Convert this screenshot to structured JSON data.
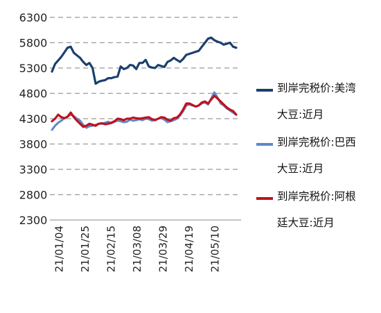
{
  "chart_data": {
    "type": "line",
    "title": "",
    "xlabel": "",
    "ylabel": "",
    "ylim": [
      2300,
      6300
    ],
    "yticks": [
      2300,
      2800,
      3300,
      3800,
      4300,
      4800,
      5300,
      5800,
      6300
    ],
    "x_tick_labels": [
      "21/01/04",
      "21/01/25",
      "21/02/15",
      "21/03/08",
      "21/03/29",
      "21/04/19",
      "21/05/10"
    ],
    "grid": "horizontal-dashed",
    "legend_position": "right",
    "series": [
      {
        "name": "到岸完税价:美湾大豆:近月",
        "color": "#1a3f6f",
        "values": [
          5230,
          5380,
          5450,
          5520,
          5610,
          5700,
          5720,
          5600,
          5550,
          5500,
          5420,
          5360,
          5400,
          5300,
          4990,
          5030,
          5050,
          5060,
          5100,
          5100,
          5120,
          5130,
          5330,
          5280,
          5300,
          5360,
          5350,
          5280,
          5400,
          5400,
          5460,
          5330,
          5310,
          5300,
          5360,
          5340,
          5320,
          5420,
          5450,
          5500,
          5460,
          5420,
          5480,
          5560,
          5580,
          5600,
          5620,
          5640,
          5720,
          5800,
          5880,
          5900,
          5850,
          5820,
          5800,
          5760,
          5780,
          5800,
          5720,
          5700
        ]
      },
      {
        "name": "到岸完税价:巴西大豆:近月",
        "color": "#5b8ac6",
        "values": [
          4080,
          4160,
          4220,
          4260,
          4310,
          4340,
          4380,
          4350,
          4300,
          4260,
          4180,
          4120,
          4150,
          4160,
          4180,
          4200,
          4200,
          4220,
          4240,
          4210,
          4240,
          4260,
          4250,
          4230,
          4240,
          4280,
          4260,
          4270,
          4290,
          4270,
          4300,
          4290,
          4260,
          4280,
          4300,
          4310,
          4280,
          4230,
          4250,
          4270,
          4300,
          4360,
          4450,
          4560,
          4580,
          4560,
          4540,
          4560,
          4600,
          4620,
          4580,
          4700,
          4820,
          4720,
          4600,
          4560,
          4500,
          4460,
          4420,
          4380
        ]
      },
      {
        "name": "到岸完税价:阿根廷大豆:近月",
        "color": "#c0111d",
        "values": [
          4250,
          4300,
          4380,
          4330,
          4310,
          4340,
          4420,
          4330,
          4260,
          4200,
          4140,
          4160,
          4200,
          4180,
          4160,
          4200,
          4210,
          4190,
          4200,
          4220,
          4250,
          4300,
          4290,
          4270,
          4300,
          4300,
          4320,
          4310,
          4300,
          4310,
          4320,
          4330,
          4290,
          4270,
          4300,
          4330,
          4320,
          4280,
          4260,
          4310,
          4320,
          4380,
          4480,
          4600,
          4600,
          4570,
          4540,
          4560,
          4620,
          4640,
          4600,
          4680,
          4750,
          4700,
          4640,
          4580,
          4520,
          4480,
          4450,
          4380
        ]
      }
    ]
  }
}
